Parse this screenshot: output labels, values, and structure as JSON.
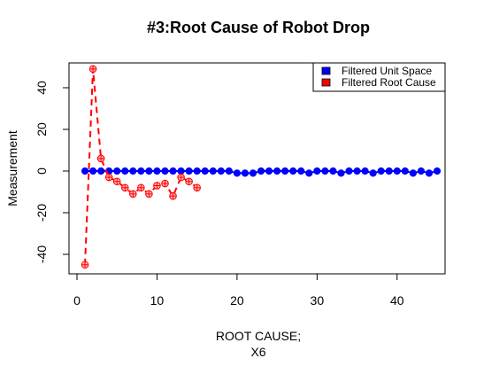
{
  "chart_data": {
    "type": "line",
    "title": "#3:Root Cause of Robot Drop",
    "xlabel_line1": "ROOT CAUSE;",
    "xlabel_line2": "X6",
    "ylabel": "Measurement",
    "xlim": [
      0,
      46
    ],
    "ylim": [
      -50,
      55
    ],
    "xticks": [
      0,
      10,
      20,
      30,
      40
    ],
    "yticks": [
      -40,
      -20,
      0,
      20,
      40
    ],
    "legend_position": "top-right",
    "series": [
      {
        "name": "Filtered Unit Space",
        "color": "#0000ff",
        "line_style": "solid",
        "marker": "filled-circle",
        "x": [
          1,
          2,
          3,
          4,
          5,
          6,
          7,
          8,
          9,
          10,
          11,
          12,
          13,
          14,
          15,
          16,
          17,
          18,
          19,
          20,
          21,
          22,
          23,
          24,
          25,
          26,
          27,
          28,
          29,
          30,
          31,
          32,
          33,
          34,
          35,
          36,
          37,
          38,
          39,
          40,
          41,
          42,
          43,
          44,
          45
        ],
        "values": [
          0,
          0,
          0,
          0,
          0,
          0,
          0,
          0,
          0,
          0,
          0,
          0,
          0,
          0,
          0,
          0,
          0,
          0,
          0,
          -1,
          -1,
          -1,
          0,
          0,
          0,
          0,
          0,
          0,
          -1,
          0,
          0,
          0,
          -1,
          0,
          0,
          0,
          -1,
          0,
          0,
          0,
          0,
          -1,
          0,
          -1,
          0
        ]
      },
      {
        "name": "Filtered Root Cause",
        "color": "#ff0000",
        "line_style": "dashed",
        "marker": "circle-plus",
        "x": [
          1,
          2,
          3,
          4,
          5,
          6,
          7,
          8,
          9,
          10,
          11,
          12,
          13,
          14,
          15
        ],
        "values": [
          -45,
          49,
          6,
          -3,
          -5,
          -8,
          -11,
          -8,
          -11,
          -7,
          -6,
          -12,
          -3,
          -5,
          -8
        ]
      }
    ]
  }
}
